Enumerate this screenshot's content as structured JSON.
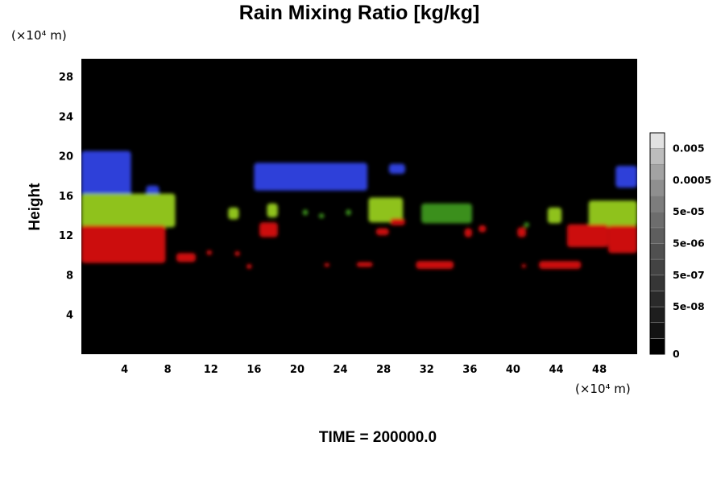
{
  "chart_data": {
    "type": "heatmap",
    "title": "Rain Mixing Ratio [kg/kg]",
    "xlabel": "",
    "ylabel": "Height",
    "x_unit": "(×10⁴ m)",
    "y_unit": "(×10⁴ m)",
    "xlim": [
      0,
      51.5
    ],
    "ylim": [
      0,
      29.8
    ],
    "x_ticks": [
      "4",
      "8",
      "12",
      "16",
      "20",
      "24",
      "28",
      "32",
      "36",
      "40",
      "44",
      "48"
    ],
    "x_tick_values": [
      4,
      8,
      12,
      16,
      20,
      24,
      28,
      32,
      36,
      40,
      44,
      48
    ],
    "y_ticks": [
      "4",
      "8",
      "12",
      "16",
      "20",
      "24",
      "28"
    ],
    "y_tick_values": [
      4,
      8,
      12,
      16,
      20,
      24,
      28
    ],
    "background": "#000000",
    "colorbar": {
      "labels": [
        "0.005",
        "0.0005",
        "5e-05",
        "5e-06",
        "5e-07",
        "5e-08",
        "0"
      ],
      "levels": 14,
      "colors": [
        "#000000",
        "#131313",
        "#1e1e1e",
        "#2a2a2a",
        "#363636",
        "#434343",
        "#505050",
        "#5e5e5e",
        "#6d6d6d",
        "#7d7d7d",
        "#8f8f8f",
        "#a3a3a3",
        "#bdbdbd",
        "#e2e2e2"
      ]
    },
    "series": [
      {
        "color": "#2f3fd9",
        "cells": [
          {
            "x0": 0,
            "x1": 4.6,
            "y0": 16.0,
            "y1": 20.5
          },
          {
            "x0": 6.0,
            "x1": 7.2,
            "y0": 16.0,
            "y1": 17.0
          },
          {
            "x0": 16.0,
            "x1": 26.5,
            "y0": 16.5,
            "y1": 19.3
          },
          {
            "x0": 28.5,
            "x1": 30.0,
            "y0": 18.2,
            "y1": 19.2
          },
          {
            "x0": 49.5,
            "x1": 51.5,
            "y0": 16.8,
            "y1": 19.0
          }
        ]
      },
      {
        "color": "#8fc21a",
        "cells": [
          {
            "x0": 0,
            "x1": 8.7,
            "y0": 12.8,
            "y1": 16.2
          },
          {
            "x0": 13.6,
            "x1": 14.6,
            "y0": 13.6,
            "y1": 14.8
          },
          {
            "x0": 17.2,
            "x1": 18.2,
            "y0": 13.8,
            "y1": 15.2
          },
          {
            "x0": 26.6,
            "x1": 29.8,
            "y0": 13.3,
            "y1": 15.8
          },
          {
            "x0": 43.2,
            "x1": 44.5,
            "y0": 13.2,
            "y1": 14.8
          },
          {
            "x0": 47.0,
            "x1": 51.5,
            "y0": 12.9,
            "y1": 15.5
          }
        ]
      },
      {
        "color": "#3a8f1c",
        "cells": [
          {
            "x0": 20.5,
            "x1": 21.0,
            "y0": 14.0,
            "y1": 14.6
          },
          {
            "x0": 22.0,
            "x1": 22.5,
            "y0": 13.7,
            "y1": 14.2
          },
          {
            "x0": 24.5,
            "x1": 25.0,
            "y0": 14.0,
            "y1": 14.6
          },
          {
            "x0": 31.5,
            "x1": 36.2,
            "y0": 13.2,
            "y1": 15.2
          },
          {
            "x0": 41.0,
            "x1": 41.5,
            "y0": 12.8,
            "y1": 13.3
          }
        ]
      },
      {
        "color": "#cc1010",
        "cells": [
          {
            "x0": 0,
            "x1": 7.8,
            "y0": 9.2,
            "y1": 13.0
          },
          {
            "x0": 8.8,
            "x1": 10.6,
            "y0": 9.3,
            "y1": 10.2
          },
          {
            "x0": 11.6,
            "x1": 12.1,
            "y0": 10.0,
            "y1": 10.5
          },
          {
            "x0": 14.2,
            "x1": 14.7,
            "y0": 9.9,
            "y1": 10.4
          },
          {
            "x0": 15.3,
            "x1": 15.8,
            "y0": 8.6,
            "y1": 9.1
          },
          {
            "x0": 16.5,
            "x1": 18.2,
            "y0": 11.8,
            "y1": 13.3
          },
          {
            "x0": 22.5,
            "x1": 23.0,
            "y0": 8.8,
            "y1": 9.2
          },
          {
            "x0": 25.5,
            "x1": 27.0,
            "y0": 8.8,
            "y1": 9.3
          },
          {
            "x0": 27.3,
            "x1": 28.5,
            "y0": 12.0,
            "y1": 12.7
          },
          {
            "x0": 28.6,
            "x1": 30.0,
            "y0": 13.0,
            "y1": 13.7
          },
          {
            "x0": 31.0,
            "x1": 34.5,
            "y0": 8.6,
            "y1": 9.4
          },
          {
            "x0": 35.5,
            "x1": 36.2,
            "y0": 11.8,
            "y1": 12.7
          },
          {
            "x0": 36.8,
            "x1": 37.5,
            "y0": 12.3,
            "y1": 13.0
          },
          {
            "x0": 40.4,
            "x1": 41.2,
            "y0": 11.8,
            "y1": 12.8
          },
          {
            "x0": 40.8,
            "x1": 41.2,
            "y0": 8.7,
            "y1": 9.1
          },
          {
            "x0": 42.4,
            "x1": 46.3,
            "y0": 8.6,
            "y1": 9.4
          },
          {
            "x0": 45.0,
            "x1": 48.8,
            "y0": 10.8,
            "y1": 13.1
          },
          {
            "x0": 48.8,
            "x1": 51.5,
            "y0": 10.2,
            "y1": 13.0
          }
        ]
      }
    ]
  },
  "footer": {
    "time_label": "TIME = 200000.0"
  }
}
